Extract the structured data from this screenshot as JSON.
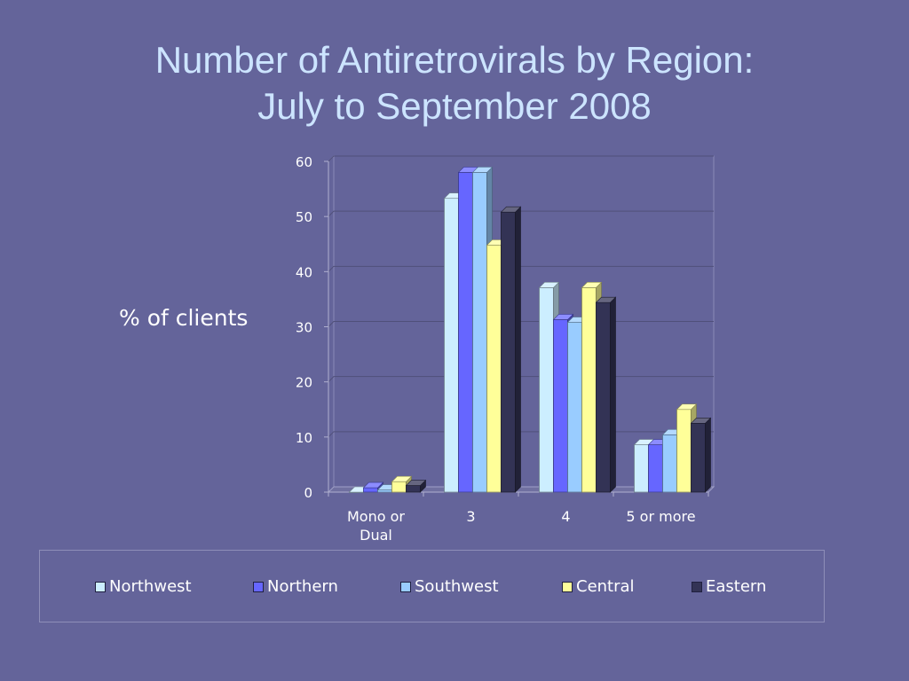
{
  "title": {
    "line1": "Number of Antiretrovirals by Region:",
    "line2": "July to September 2008"
  },
  "chart_data": {
    "type": "bar",
    "ylabel": "% of clients",
    "categories": [
      "Mono or Dual",
      "3",
      "4",
      "5 or more"
    ],
    "category_lines": [
      [
        "Mono or",
        "Dual"
      ],
      [
        "3"
      ],
      [
        "4"
      ],
      [
        "5 or more"
      ]
    ],
    "ylim": [
      0,
      60
    ],
    "yticks": [
      0,
      10,
      20,
      30,
      40,
      50,
      60
    ],
    "grid": true,
    "legend_position": "bottom",
    "series": [
      {
        "name": "Northwest",
        "color": "#cceeff",
        "values": [
          0,
          53.3,
          37.1,
          8.6
        ]
      },
      {
        "name": "Northern",
        "color": "#6666ff",
        "values": [
          0.8,
          58,
          31.3,
          8.6
        ]
      },
      {
        "name": "Southwest",
        "color": "#99ccff",
        "values": [
          0.4,
          58,
          30.8,
          10.4
        ]
      },
      {
        "name": "Central",
        "color": "#ffff99",
        "values": [
          1.9,
          44.8,
          37.1,
          15
        ]
      },
      {
        "name": "Eastern",
        "color": "#333355",
        "values": [
          1.2,
          50.8,
          34.4,
          12.5
        ]
      }
    ]
  }
}
